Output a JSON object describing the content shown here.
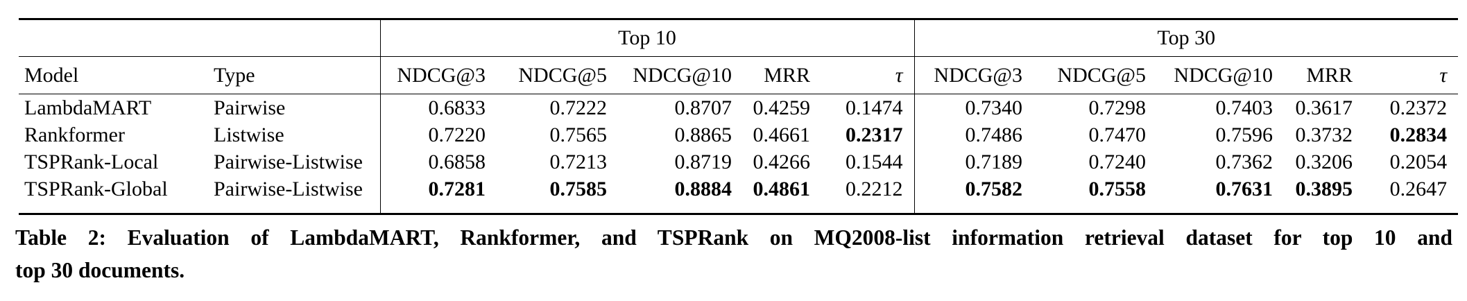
{
  "table": {
    "group_headers": [
      "Top 10",
      "Top 30"
    ],
    "col_model": "Model",
    "col_type": "Type",
    "metric_headers": [
      "NDCG@3",
      "NDCG@5",
      "NDCG@10",
      "MRR",
      "τ"
    ],
    "rows": [
      {
        "model": "LambdaMART",
        "type": "Pairwise",
        "top10": [
          {
            "v": "0.6833",
            "b": false
          },
          {
            "v": "0.7222",
            "b": false
          },
          {
            "v": "0.8707",
            "b": false
          },
          {
            "v": "0.4259",
            "b": false
          },
          {
            "v": "0.1474",
            "b": false
          }
        ],
        "top30": [
          {
            "v": "0.7340",
            "b": false
          },
          {
            "v": "0.7298",
            "b": false
          },
          {
            "v": "0.7403",
            "b": false
          },
          {
            "v": "0.3617",
            "b": false
          },
          {
            "v": "0.2372",
            "b": false
          }
        ]
      },
      {
        "model": "Rankformer",
        "type": "Listwise",
        "top10": [
          {
            "v": "0.7220",
            "b": false
          },
          {
            "v": "0.7565",
            "b": false
          },
          {
            "v": "0.8865",
            "b": false
          },
          {
            "v": "0.4661",
            "b": false
          },
          {
            "v": "0.2317",
            "b": true
          }
        ],
        "top30": [
          {
            "v": "0.7486",
            "b": false
          },
          {
            "v": "0.7470",
            "b": false
          },
          {
            "v": "0.7596",
            "b": false
          },
          {
            "v": "0.3732",
            "b": false
          },
          {
            "v": "0.2834",
            "b": true
          }
        ]
      },
      {
        "model": "TSPRank-Local",
        "type": "Pairwise-Listwise",
        "top10": [
          {
            "v": "0.6858",
            "b": false
          },
          {
            "v": "0.7213",
            "b": false
          },
          {
            "v": "0.8719",
            "b": false
          },
          {
            "v": "0.4266",
            "b": false
          },
          {
            "v": "0.1544",
            "b": false
          }
        ],
        "top30": [
          {
            "v": "0.7189",
            "b": false
          },
          {
            "v": "0.7240",
            "b": false
          },
          {
            "v": "0.7362",
            "b": false
          },
          {
            "v": "0.3206",
            "b": false
          },
          {
            "v": "0.2054",
            "b": false
          }
        ]
      },
      {
        "model": "TSPRank-Global",
        "type": "Pairwise-Listwise",
        "top10": [
          {
            "v": "0.7281",
            "b": true
          },
          {
            "v": "0.7585",
            "b": true
          },
          {
            "v": "0.8884",
            "b": true
          },
          {
            "v": "0.4861",
            "b": true
          },
          {
            "v": "0.2212",
            "b": false
          }
        ],
        "top30": [
          {
            "v": "0.7582",
            "b": true
          },
          {
            "v": "0.7558",
            "b": true
          },
          {
            "v": "0.7631",
            "b": true
          },
          {
            "v": "0.3895",
            "b": true
          },
          {
            "v": "0.2647",
            "b": false
          }
        ]
      }
    ]
  },
  "caption": {
    "line1": "Table 2: Evaluation of LambdaMART, Rankformer, and TSPRank on MQ2008-list information retrieval dataset for top 10 and",
    "line2": "top 30 documents."
  }
}
